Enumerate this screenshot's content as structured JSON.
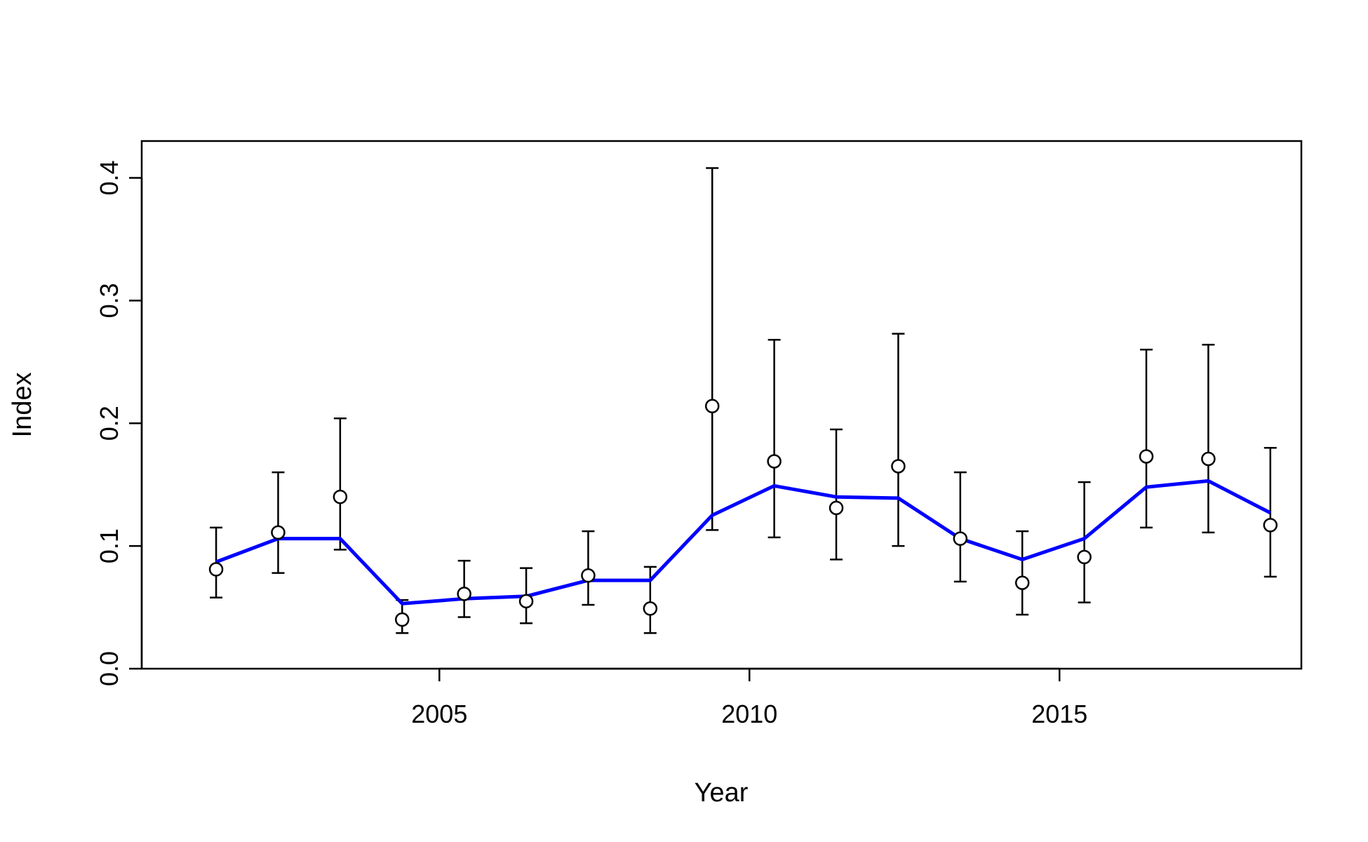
{
  "chart_data": {
    "type": "line",
    "title": "",
    "xlabel": "Year",
    "ylabel": "Index",
    "xlim": [
      2000.2,
      2018.9
    ],
    "ylim": [
      0,
      0.43
    ],
    "x_ticks": [
      2005,
      2010,
      2015
    ],
    "x_tick_labels": [
      "2005",
      "2010",
      "2015"
    ],
    "y_ticks": [
      0,
      0.1,
      0.2,
      0.3,
      0.4
    ],
    "y_tick_labels": [
      "0.0",
      "0.1",
      "0.2",
      "0.3",
      "0.4"
    ],
    "grid": false,
    "colors": {
      "fit_line": "#0000ff",
      "points": "#000000",
      "error_bars": "#000000"
    },
    "x": [
      2001.4,
      2002.4,
      2003.4,
      2004.4,
      2005.4,
      2006.4,
      2007.4,
      2008.4,
      2009.4,
      2010.4,
      2011.4,
      2012.4,
      2013.4,
      2014.4,
      2015.4,
      2016.4,
      2017.4,
      2018.4
    ],
    "series": [
      {
        "kind": "observed",
        "values": [
          0.081,
          0.111,
          0.14,
          0.04,
          0.061,
          0.055,
          0.076,
          0.049,
          0.214,
          0.169,
          0.131,
          0.165,
          0.106,
          0.07,
          0.091,
          0.173,
          0.171,
          0.117
        ],
        "lower": [
          0.058,
          0.078,
          0.097,
          0.029,
          0.042,
          0.037,
          0.052,
          0.029,
          0.113,
          0.107,
          0.089,
          0.1,
          0.071,
          0.044,
          0.054,
          0.115,
          0.111,
          0.075
        ],
        "upper": [
          0.115,
          0.16,
          0.204,
          0.056,
          0.088,
          0.082,
          0.112,
          0.083,
          0.408,
          0.268,
          0.195,
          0.273,
          0.16,
          0.112,
          0.152,
          0.26,
          0.264,
          0.18
        ]
      },
      {
        "kind": "fitted",
        "values": [
          0.087,
          0.106,
          0.106,
          0.053,
          0.057,
          0.059,
          0.072,
          0.072,
          0.125,
          0.149,
          0.14,
          0.139,
          0.106,
          0.089,
          0.106,
          0.148,
          0.153,
          0.127
        ]
      }
    ]
  }
}
